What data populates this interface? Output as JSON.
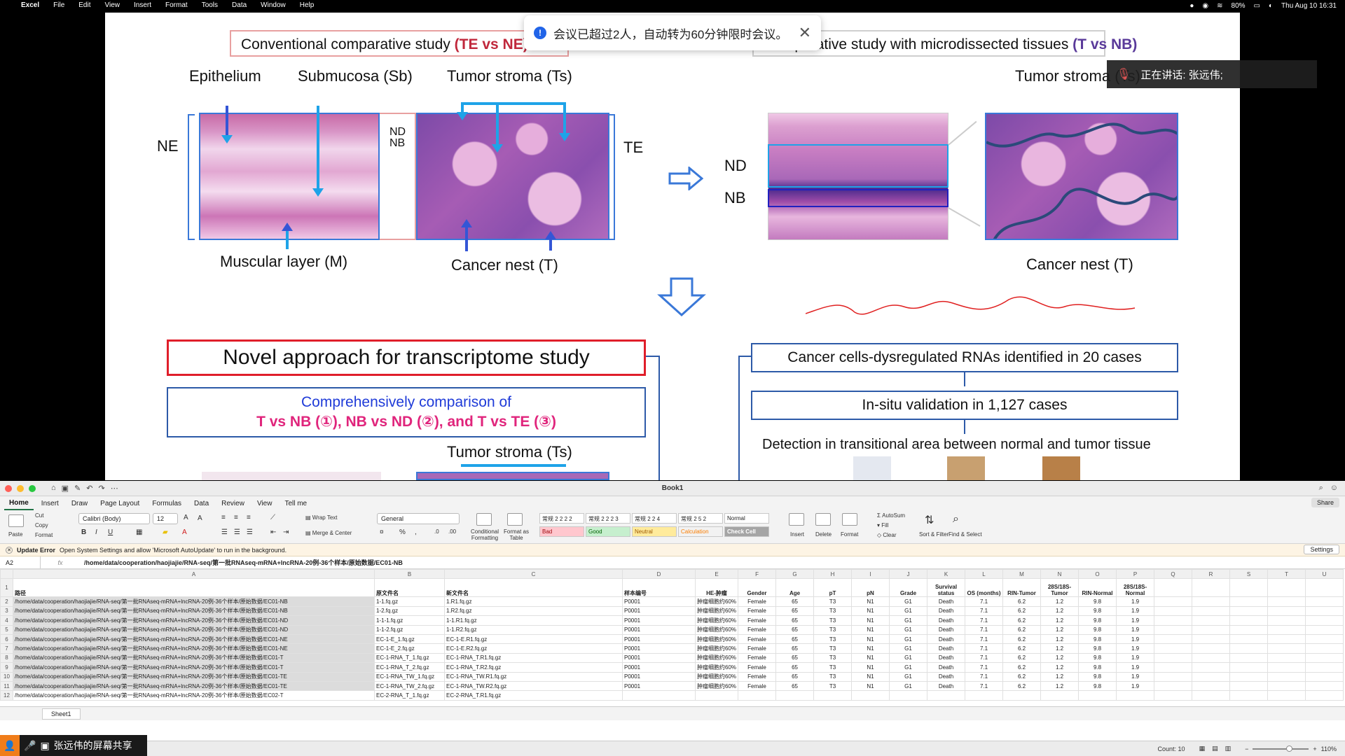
{
  "menubar": {
    "apple": "",
    "items": [
      "Excel",
      "File",
      "Edit",
      "View",
      "Insert",
      "Format",
      "Tools",
      "Data",
      "Window",
      "Help"
    ],
    "battery": "80%",
    "clock": "Thu Aug 10  16:31"
  },
  "slide": {
    "left_title_prefix": "Conventional comparative study ",
    "left_title_highlight": "(TE vs NE)",
    "right_title_prefix": "Comparative study with microdissected tissues ",
    "right_title_highlight": "(T vs NB)",
    "label_epithelium": "Epithelium",
    "label_submucosa": "Submucosa (Sb)",
    "label_tumor_stroma": "Tumor stroma (Ts)",
    "label_ne": "NE",
    "label_nd": "ND",
    "label_nb": "NB",
    "label_te": "TE",
    "label_muscular": "Muscular layer (M)",
    "label_cancer_nest": "Cancer nest (T)",
    "label_nd_right": "ND",
    "label_nb_right": "NB",
    "label_tumor_stroma_right": "Tumor stroma (Ts)",
    "label_cancer_nest_right": "Cancer nest (T)",
    "novel_title": "Novel approach for transcriptome study",
    "comparison_line1": "Comprehensively comparison of",
    "comparison_line2": "T vs NB (①), NB vs ND (②), and T vs TE (③)",
    "tumor_stroma_bottom": "Tumor stroma (Ts)",
    "flow_box1": "Cancer cells-dysregulated RNAs identified in 20 cases",
    "flow_box2": "In-situ validation in 1,127 cases",
    "flow_text3": "Detection in transitional area between normal and tumor tissue"
  },
  "notice": {
    "text": "会议已超过2人，自动转为60分钟限时会议。",
    "close": "✕"
  },
  "speaker": {
    "text": "正在讲话:  张远伟;"
  },
  "excel": {
    "window_title": "Book1",
    "tabs": [
      "Home",
      "Insert",
      "Draw",
      "Page Layout",
      "Formulas",
      "Data",
      "Review",
      "View",
      "Tell me"
    ],
    "share": "Share",
    "font_name": "Calibri (Body)",
    "font_size": "12",
    "number_format": "General",
    "clipboard": {
      "paste": "Paste",
      "cut": "Cut",
      "copy": "Copy",
      "format": "Format"
    },
    "wrap_text": "Wrap Text",
    "merge_center": "Merge & Center",
    "conditional": "Conditional Formatting",
    "format_table": "Format as Table",
    "styles": {
      "s1": "常规 2 2 2 2",
      "s2": "常规 2 2 2 3",
      "s3": "常规 2 2 4",
      "s4": "常规 2 5 2",
      "normal": "Normal",
      "bad": "Bad",
      "good": "Good",
      "neutral": "Neutral",
      "calculation": "Calculation",
      "check": "Check Cell"
    },
    "cells_group": {
      "insert": "Insert",
      "delete": "Delete",
      "format": "Format"
    },
    "editing": {
      "autosum": "AutoSum",
      "fill": "Fill",
      "clear": "Clear",
      "sort": "Sort & Filter",
      "find": "Find & Select"
    },
    "update": {
      "label": "Update Error",
      "message": "Open System Settings and allow 'Microsoft AutoUpdate' to run in the background.",
      "settings": "Settings"
    },
    "namebox": "A2",
    "formula": "/home/data/cooperation/haojiajie/RNA-seq/第一批RNAseq-mRNA+lncRNA-20例-36个样本/原始数据/EC01-NB",
    "columns": [
      "A",
      "B",
      "C",
      "D",
      "E",
      "F",
      "G",
      "H",
      "I",
      "J",
      "K",
      "L",
      "M",
      "N",
      "O",
      "P",
      "Q",
      "R",
      "S",
      "T",
      "U"
    ],
    "header_row": [
      "路径",
      "原文件名",
      "新文件名",
      "样本编号",
      "HE-肿瘤",
      "Gender",
      "Age",
      "pT",
      "pN",
      "Grade",
      "Survival status",
      "OS (months)",
      "RIN-Tumor",
      "28S/18S-Tumor",
      "RIN-Normal",
      "28S/18S-Normal"
    ],
    "rows": [
      [
        "/home/data/cooperation/haojiajie/RNA-seq/第一批RNAseq-mRNA+lncRNA-20例-36个样本/原始数据/EC01-NB",
        "1-1.fq.gz",
        "1.R1.fq.gz",
        "P0001",
        "肿瘤细胞约60%",
        "Female",
        "65",
        "T3",
        "N1",
        "G1",
        "Death",
        "7.1",
        "6.2",
        "1.2",
        "9.8",
        "1.9"
      ],
      [
        "/home/data/cooperation/haojiajie/RNA-seq/第一批RNAseq-mRNA+lncRNA-20例-36个样本/原始数据/EC01-NB",
        "1-2.fq.gz",
        "1.R2.fq.gz",
        "P0001",
        "肿瘤细胞约60%",
        "Female",
        "65",
        "T3",
        "N1",
        "G1",
        "Death",
        "7.1",
        "6.2",
        "1.2",
        "9.8",
        "1.9"
      ],
      [
        "/home/data/cooperation/haojiajie/RNA-seq/第一批RNAseq-mRNA+lncRNA-20例-36个样本/原始数据/EC01-ND",
        "1-1-1.fq.gz",
        "1-1.R1.fq.gz",
        "P0001",
        "肿瘤细胞约60%",
        "Female",
        "65",
        "T3",
        "N1",
        "G1",
        "Death",
        "7.1",
        "6.2",
        "1.2",
        "9.8",
        "1.9"
      ],
      [
        "/home/data/cooperation/haojiajie/RNA-seq/第一批RNAseq-mRNA+lncRNA-20例-36个样本/原始数据/EC01-ND",
        "1-1-2.fq.gz",
        "1-1.R2.fq.gz",
        "P0001",
        "肿瘤细胞约60%",
        "Female",
        "65",
        "T3",
        "N1",
        "G1",
        "Death",
        "7.1",
        "6.2",
        "1.2",
        "9.8",
        "1.9"
      ],
      [
        "/home/data/cooperation/haojiajie/RNA-seq/第一批RNAseq-mRNA+lncRNA-20例-36个样本/原始数据/EC01-NE",
        "EC-1-E_1.fq.gz",
        "EC-1-E.R1.fq.gz",
        "P0001",
        "肿瘤细胞约60%",
        "Female",
        "65",
        "T3",
        "N1",
        "G1",
        "Death",
        "7.1",
        "6.2",
        "1.2",
        "9.8",
        "1.9"
      ],
      [
        "/home/data/cooperation/haojiajie/RNA-seq/第一批RNAseq-mRNA+lncRNA-20例-36个样本/原始数据/EC01-NE",
        "EC-1-E_2.fq.gz",
        "EC-1-E.R2.fq.gz",
        "P0001",
        "肿瘤细胞约60%",
        "Female",
        "65",
        "T3",
        "N1",
        "G1",
        "Death",
        "7.1",
        "6.2",
        "1.2",
        "9.8",
        "1.9"
      ],
      [
        "/home/data/cooperation/haojiajie/RNA-seq/第一批RNAseq-mRNA+lncRNA-20例-36个样本/原始数据/EC01-T",
        "EC-1-RNA_T_1.fq.gz",
        "EC-1-RNA_T.R1.fq.gz",
        "P0001",
        "肿瘤细胞约60%",
        "Female",
        "65",
        "T3",
        "N1",
        "G1",
        "Death",
        "7.1",
        "6.2",
        "1.2",
        "9.8",
        "1.9"
      ],
      [
        "/home/data/cooperation/haojiajie/RNA-seq/第一批RNAseq-mRNA+lncRNA-20例-36个样本/原始数据/EC01-T",
        "EC-1-RNA_T_2.fq.gz",
        "EC-1-RNA_T.R2.fq.gz",
        "P0001",
        "肿瘤细胞约60%",
        "Female",
        "65",
        "T3",
        "N1",
        "G1",
        "Death",
        "7.1",
        "6.2",
        "1.2",
        "9.8",
        "1.9"
      ],
      [
        "/home/data/cooperation/haojiajie/RNA-seq/第一批RNAseq-mRNA+lncRNA-20例-36个样本/原始数据/EC01-TE",
        "EC-1-RNA_TW_1.fq.gz",
        "EC-1-RNA_TW.R1.fq.gz",
        "P0001",
        "肿瘤细胞约60%",
        "Female",
        "65",
        "T3",
        "N1",
        "G1",
        "Death",
        "7.1",
        "6.2",
        "1.2",
        "9.8",
        "1.9"
      ],
      [
        "/home/data/cooperation/haojiajie/RNA-seq/第一批RNAseq-mRNA+lncRNA-20例-36个样本/原始数据/EC01-TE",
        "EC-1-RNA_TW_2.fq.gz",
        "EC-1-RNA_TW.R2.fq.gz",
        "P0001",
        "肿瘤细胞约60%",
        "Female",
        "65",
        "T3",
        "N1",
        "G1",
        "Death",
        "7.1",
        "6.2",
        "1.2",
        "9.8",
        "1.9"
      ],
      [
        "/home/data/cooperation/haojiajie/RNA-seq/第一批RNAseq-mRNA+lncRNA-20例-36个样本/原始数据/EC02-T",
        "EC-2-RNA_T_1.fq.gz",
        "EC-2-RNA_T.R1.fq.gz",
        "",
        "",
        "",
        "",
        "",
        "",
        "",
        "",
        "",
        "",
        "",
        "",
        ""
      ]
    ],
    "status_count": "Count: 10",
    "zoom": "110%"
  },
  "share_badge": {
    "text": "张远伟的屏幕共享"
  }
}
